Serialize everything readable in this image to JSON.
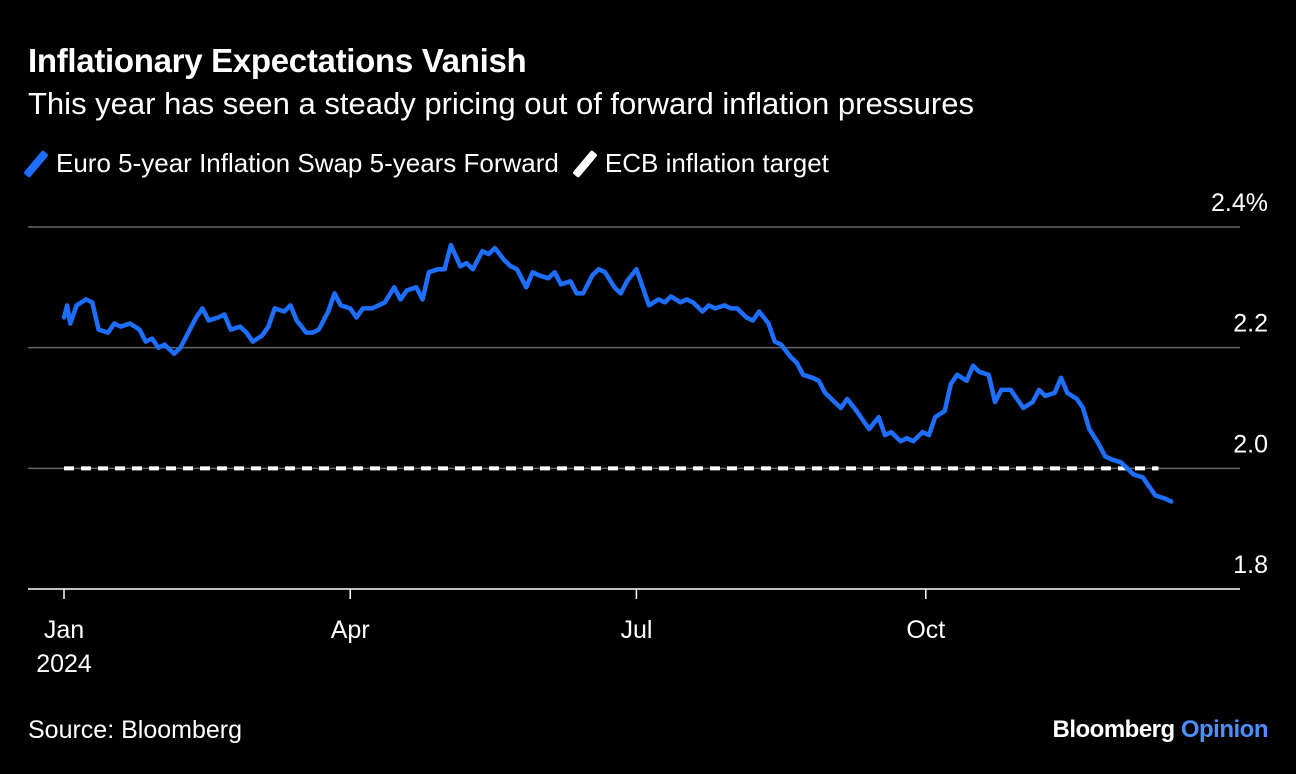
{
  "header": {
    "title": "Inflationary Expectations Vanish",
    "subtitle": "This year has seen a steady pricing out of forward inflation pressures"
  },
  "footer": {
    "source": "Source: Bloomberg",
    "logo_main": "Bloomberg",
    "logo_accent": "Opinion"
  },
  "colors": {
    "background": "#000000",
    "series": "#1e6fff",
    "target": "#ffffff",
    "grid": "#666666",
    "logo_accent": "#4d8fff"
  },
  "chart_data": {
    "type": "line",
    "title": "Inflationary Expectations Vanish",
    "subtitle": "This year has seen a steady pricing out of forward inflation pressures",
    "y_unit": "%",
    "ylim": [
      1.8,
      2.4
    ],
    "y_ticks": [
      {
        "value": 2.4,
        "label": "2.4%"
      },
      {
        "value": 2.2,
        "label": "2.2"
      },
      {
        "value": 2.0,
        "label": "2.0"
      },
      {
        "value": 1.8,
        "label": "1.8"
      }
    ],
    "x_ticks": [
      {
        "date": "2024-01-01",
        "label": "Jan",
        "sublabel": "2024"
      },
      {
        "date": "2024-04-01",
        "label": "Apr",
        "sublabel": ""
      },
      {
        "date": "2024-07-01",
        "label": "Jul",
        "sublabel": ""
      },
      {
        "date": "2024-10-01",
        "label": "Oct",
        "sublabel": ""
      }
    ],
    "xlim": [
      "2024-01-01",
      "2024-12-31"
    ],
    "grid": "horizontal",
    "legend_position": "top-left",
    "series": [
      {
        "name": "Euro 5-year Inflation Swap 5-years Forward",
        "color": "#1e6fff",
        "style": "solid",
        "points": [
          [
            "2024-01-01",
            2.25
          ],
          [
            "2024-01-02",
            2.27
          ],
          [
            "2024-01-03",
            2.24
          ],
          [
            "2024-01-05",
            2.27
          ],
          [
            "2024-01-08",
            2.28
          ],
          [
            "2024-01-10",
            2.275
          ],
          [
            "2024-01-12",
            2.23
          ],
          [
            "2024-01-15",
            2.225
          ],
          [
            "2024-01-17",
            2.24
          ],
          [
            "2024-01-19",
            2.235
          ],
          [
            "2024-01-22",
            2.24
          ],
          [
            "2024-01-25",
            2.23
          ],
          [
            "2024-01-27",
            2.21
          ],
          [
            "2024-01-29",
            2.215
          ],
          [
            "2024-01-31",
            2.2
          ],
          [
            "2024-02-02",
            2.205
          ],
          [
            "2024-02-05",
            2.19
          ],
          [
            "2024-02-07",
            2.2
          ],
          [
            "2024-02-09",
            2.22
          ],
          [
            "2024-02-12",
            2.25
          ],
          [
            "2024-02-14",
            2.265
          ],
          [
            "2024-02-16",
            2.245
          ],
          [
            "2024-02-19",
            2.25
          ],
          [
            "2024-02-21",
            2.255
          ],
          [
            "2024-02-23",
            2.23
          ],
          [
            "2024-02-26",
            2.235
          ],
          [
            "2024-02-28",
            2.225
          ],
          [
            "2024-03-01",
            2.21
          ],
          [
            "2024-03-04",
            2.22
          ],
          [
            "2024-03-06",
            2.235
          ],
          [
            "2024-03-08",
            2.265
          ],
          [
            "2024-03-11",
            2.26
          ],
          [
            "2024-03-13",
            2.27
          ],
          [
            "2024-03-15",
            2.245
          ],
          [
            "2024-03-18",
            2.225
          ],
          [
            "2024-03-20",
            2.225
          ],
          [
            "2024-03-22",
            2.23
          ],
          [
            "2024-03-25",
            2.26
          ],
          [
            "2024-03-27",
            2.29
          ],
          [
            "2024-03-29",
            2.27
          ],
          [
            "2024-04-01",
            2.265
          ],
          [
            "2024-04-03",
            2.25
          ],
          [
            "2024-04-05",
            2.265
          ],
          [
            "2024-04-08",
            2.265
          ],
          [
            "2024-04-10",
            2.27
          ],
          [
            "2024-04-12",
            2.275
          ],
          [
            "2024-04-15",
            2.3
          ],
          [
            "2024-04-17",
            2.28
          ],
          [
            "2024-04-19",
            2.295
          ],
          [
            "2024-04-22",
            2.3
          ],
          [
            "2024-04-24",
            2.28
          ],
          [
            "2024-04-26",
            2.325
          ],
          [
            "2024-04-29",
            2.33
          ],
          [
            "2024-05-01",
            2.33
          ],
          [
            "2024-05-03",
            2.37
          ],
          [
            "2024-05-06",
            2.335
          ],
          [
            "2024-05-08",
            2.34
          ],
          [
            "2024-05-10",
            2.33
          ],
          [
            "2024-05-13",
            2.36
          ],
          [
            "2024-05-15",
            2.355
          ],
          [
            "2024-05-17",
            2.365
          ],
          [
            "2024-05-20",
            2.345
          ],
          [
            "2024-05-22",
            2.335
          ],
          [
            "2024-05-24",
            2.33
          ],
          [
            "2024-05-27",
            2.3
          ],
          [
            "2024-05-29",
            2.325
          ],
          [
            "2024-05-31",
            2.32
          ],
          [
            "2024-06-03",
            2.315
          ],
          [
            "2024-06-05",
            2.325
          ],
          [
            "2024-06-07",
            2.305
          ],
          [
            "2024-06-10",
            2.31
          ],
          [
            "2024-06-12",
            2.29
          ],
          [
            "2024-06-14",
            2.29
          ],
          [
            "2024-06-17",
            2.32
          ],
          [
            "2024-06-19",
            2.33
          ],
          [
            "2024-06-21",
            2.325
          ],
          [
            "2024-06-24",
            2.3
          ],
          [
            "2024-06-26",
            2.29
          ],
          [
            "2024-06-28",
            2.31
          ],
          [
            "2024-07-01",
            2.33
          ],
          [
            "2024-07-03",
            2.3
          ],
          [
            "2024-07-05",
            2.27
          ],
          [
            "2024-07-08",
            2.28
          ],
          [
            "2024-07-10",
            2.275
          ],
          [
            "2024-07-12",
            2.285
          ],
          [
            "2024-07-15",
            2.275
          ],
          [
            "2024-07-17",
            2.28
          ],
          [
            "2024-07-19",
            2.275
          ],
          [
            "2024-07-22",
            2.26
          ],
          [
            "2024-07-24",
            2.27
          ],
          [
            "2024-07-26",
            2.265
          ],
          [
            "2024-07-29",
            2.27
          ],
          [
            "2024-07-31",
            2.265
          ],
          [
            "2024-08-02",
            2.265
          ],
          [
            "2024-08-05",
            2.25
          ],
          [
            "2024-08-07",
            2.245
          ],
          [
            "2024-08-09",
            2.26
          ],
          [
            "2024-08-12",
            2.24
          ],
          [
            "2024-08-14",
            2.21
          ],
          [
            "2024-08-16",
            2.205
          ],
          [
            "2024-08-19",
            2.185
          ],
          [
            "2024-08-21",
            2.175
          ],
          [
            "2024-08-23",
            2.155
          ],
          [
            "2024-08-26",
            2.15
          ],
          [
            "2024-08-28",
            2.145
          ],
          [
            "2024-08-30",
            2.125
          ],
          [
            "2024-09-02",
            2.11
          ],
          [
            "2024-09-04",
            2.1
          ],
          [
            "2024-09-06",
            2.115
          ],
          [
            "2024-09-09",
            2.095
          ],
          [
            "2024-09-11",
            2.08
          ],
          [
            "2024-09-13",
            2.065
          ],
          [
            "2024-09-16",
            2.085
          ],
          [
            "2024-09-18",
            2.055
          ],
          [
            "2024-09-20",
            2.06
          ],
          [
            "2024-09-23",
            2.045
          ],
          [
            "2024-09-25",
            2.05
          ],
          [
            "2024-09-27",
            2.045
          ],
          [
            "2024-09-30",
            2.06
          ],
          [
            "2024-10-02",
            2.055
          ],
          [
            "2024-10-04",
            2.085
          ],
          [
            "2024-10-07",
            2.095
          ],
          [
            "2024-10-09",
            2.14
          ],
          [
            "2024-10-11",
            2.155
          ],
          [
            "2024-10-14",
            2.145
          ],
          [
            "2024-10-16",
            2.17
          ],
          [
            "2024-10-18",
            2.16
          ],
          [
            "2024-10-21",
            2.155
          ],
          [
            "2024-10-23",
            2.11
          ],
          [
            "2024-10-25",
            2.13
          ],
          [
            "2024-10-28",
            2.13
          ],
          [
            "2024-10-30",
            2.115
          ],
          [
            "2024-11-01",
            2.1
          ],
          [
            "2024-11-04",
            2.11
          ],
          [
            "2024-11-06",
            2.13
          ],
          [
            "2024-11-08",
            2.12
          ],
          [
            "2024-11-11",
            2.125
          ],
          [
            "2024-11-13",
            2.15
          ],
          [
            "2024-11-15",
            2.125
          ],
          [
            "2024-11-18",
            2.115
          ],
          [
            "2024-11-20",
            2.1
          ],
          [
            "2024-11-22",
            2.065
          ],
          [
            "2024-11-25",
            2.04
          ],
          [
            "2024-11-27",
            2.02
          ],
          [
            "2024-11-29",
            2.015
          ],
          [
            "2024-12-02",
            2.01
          ],
          [
            "2024-12-04",
            2.0
          ],
          [
            "2024-12-06",
            1.99
          ],
          [
            "2024-12-09",
            1.985
          ],
          [
            "2024-12-11",
            1.97
          ],
          [
            "2024-12-13",
            1.955
          ],
          [
            "2024-12-16",
            1.95
          ],
          [
            "2024-12-18",
            1.945
          ]
        ]
      },
      {
        "name": "ECB inflation target",
        "color": "#ffffff",
        "style": "dashed",
        "points": [
          [
            "2024-01-01",
            2.0
          ],
          [
            "2024-12-14",
            2.0
          ]
        ]
      }
    ]
  }
}
